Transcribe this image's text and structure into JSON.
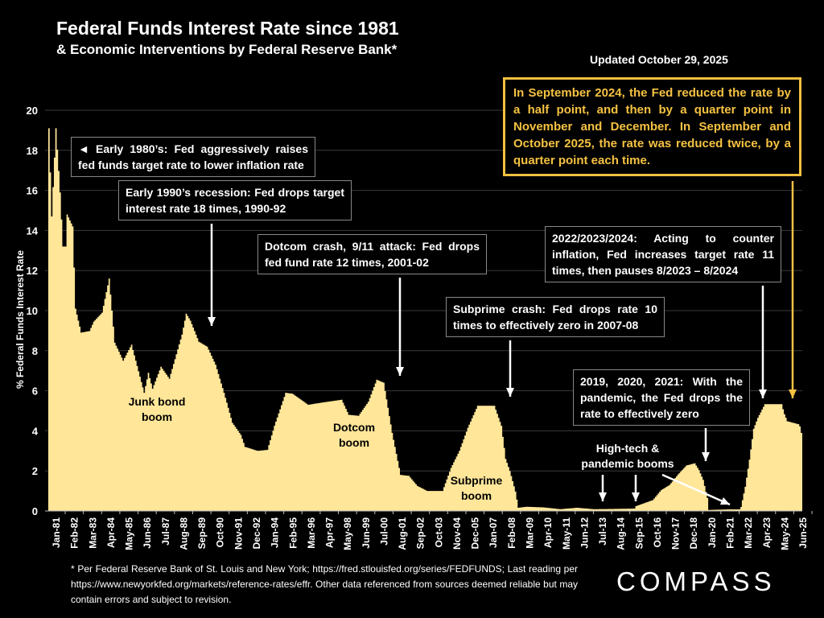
{
  "header": {
    "title": "Federal Funds Interest Rate since 1981",
    "subtitle": "& Economic Interventions by Federal Reserve Bank*",
    "updated": "Updated October 29, 2025"
  },
  "chart_data": {
    "type": "area",
    "title": "Federal Funds Interest Rate since 1981",
    "ylabel": "% Federal Funds Interest Rate",
    "xlabel": "",
    "ylim": [
      0,
      20
    ],
    "yticks": [
      "0",
      "2",
      "4",
      "6",
      "8",
      "10",
      "12",
      "14",
      "16",
      "18",
      "20"
    ],
    "xlim": [
      "1981-01",
      "2025-10"
    ],
    "grid": true,
    "fill_color": "#FFE699",
    "xtick_labels": [
      "Jan-81",
      "Feb-82",
      "Mar-83",
      "Apr-84",
      "May-85",
      "Jun-86",
      "Jul-87",
      "Aug-88",
      "Sep-89",
      "Oct-90",
      "Nov-91",
      "Dec-92",
      "Jan-94",
      "Feb-95",
      "Mar-96",
      "Apr-97",
      "May-98",
      "Jun-99",
      "Jul-00",
      "Aug-01",
      "Sep-02",
      "Oct-03",
      "Nov-04",
      "Dec-05",
      "Jan-07",
      "Feb-08",
      "Mar-09",
      "Apr-10",
      "May-11",
      "Jun-12",
      "Jul-13",
      "Aug-14",
      "Sep-15",
      "Oct-16",
      "Nov-17",
      "Dec-18",
      "Jan-20",
      "Feb-21",
      "Mar-22",
      "Apr-23",
      "May-24",
      "Jun-25"
    ],
    "points": [
      [
        "1981-01",
        19.1
      ],
      [
        "1981-03",
        14.7
      ],
      [
        "1981-06",
        19.1
      ],
      [
        "1981-09",
        15.9
      ],
      [
        "1981-11",
        13.2
      ],
      [
        "1982-01",
        13.2
      ],
      [
        "1982-02",
        14.8
      ],
      [
        "1982-06",
        14.2
      ],
      [
        "1982-08",
        10.1
      ],
      [
        "1982-12",
        8.9
      ],
      [
        "1983-06",
        8.98
      ],
      [
        "1983-09",
        9.45
      ],
      [
        "1984-03",
        9.9
      ],
      [
        "1984-08",
        11.6
      ],
      [
        "1984-12",
        8.4
      ],
      [
        "1985-06",
        7.5
      ],
      [
        "1985-12",
        8.3
      ],
      [
        "1986-03",
        7.5
      ],
      [
        "1986-09",
        5.9
      ],
      [
        "1986-12",
        6.9
      ],
      [
        "1987-03",
        6.1
      ],
      [
        "1987-09",
        7.2
      ],
      [
        "1988-03",
        6.6
      ],
      [
        "1988-12",
        8.8
      ],
      [
        "1989-03",
        9.85
      ],
      [
        "1989-06",
        9.5
      ],
      [
        "1989-12",
        8.45
      ],
      [
        "1990-06",
        8.2
      ],
      [
        "1990-12",
        7.3
      ],
      [
        "1991-06",
        5.9
      ],
      [
        "1991-12",
        4.4
      ],
      [
        "1992-06",
        3.8
      ],
      [
        "1992-09",
        3.2
      ],
      [
        "1993-06",
        3.0
      ],
      [
        "1994-01",
        3.05
      ],
      [
        "1994-06",
        4.25
      ],
      [
        "1995-02",
        5.9
      ],
      [
        "1995-07",
        5.85
      ],
      [
        "1996-01",
        5.55
      ],
      [
        "1996-06",
        5.3
      ],
      [
        "1997-03",
        5.4
      ],
      [
        "1998-06",
        5.55
      ],
      [
        "1998-11",
        4.8
      ],
      [
        "1999-06",
        4.75
      ],
      [
        "2000-01",
        5.45
      ],
      [
        "2000-07",
        6.55
      ],
      [
        "2000-12",
        6.4
      ],
      [
        "2001-06",
        3.9
      ],
      [
        "2001-12",
        1.8
      ],
      [
        "2002-06",
        1.75
      ],
      [
        "2002-12",
        1.25
      ],
      [
        "2003-07",
        1.0
      ],
      [
        "2004-06",
        1.0
      ],
      [
        "2004-12",
        2.15
      ],
      [
        "2005-06",
        3.0
      ],
      [
        "2005-12",
        4.15
      ],
      [
        "2006-07",
        5.25
      ],
      [
        "2007-07",
        5.25
      ],
      [
        "2007-12",
        4.25
      ],
      [
        "2008-03",
        2.6
      ],
      [
        "2008-06",
        2.0
      ],
      [
        "2008-10",
        0.97
      ],
      [
        "2008-12",
        0.16
      ],
      [
        "2009-06",
        0.21
      ],
      [
        "2010-06",
        0.18
      ],
      [
        "2011-06",
        0.09
      ],
      [
        "2012-06",
        0.16
      ],
      [
        "2013-06",
        0.09
      ],
      [
        "2014-06",
        0.1
      ],
      [
        "2015-11",
        0.12
      ],
      [
        "2015-12",
        0.24
      ],
      [
        "2016-12",
        0.54
      ],
      [
        "2017-06",
        1.04
      ],
      [
        "2017-12",
        1.3
      ],
      [
        "2018-06",
        1.82
      ],
      [
        "2018-12",
        2.27
      ],
      [
        "2019-06",
        2.38
      ],
      [
        "2019-09",
        2.04
      ],
      [
        "2019-12",
        1.55
      ],
      [
        "2020-03",
        0.65
      ],
      [
        "2020-04",
        0.05
      ],
      [
        "2021-06",
        0.08
      ],
      [
        "2022-02",
        0.08
      ],
      [
        "2022-03",
        0.2
      ],
      [
        "2022-06",
        1.21
      ],
      [
        "2022-09",
        2.56
      ],
      [
        "2022-12",
        4.1
      ],
      [
        "2023-03",
        4.65
      ],
      [
        "2023-08",
        5.33
      ],
      [
        "2024-08",
        5.33
      ],
      [
        "2024-10",
        4.83
      ],
      [
        "2024-12",
        4.48
      ],
      [
        "2025-08",
        4.33
      ],
      [
        "2025-09",
        4.22
      ],
      [
        "2025-10",
        3.9
      ]
    ],
    "annotations": {
      "early80s": "◄ Early 1980’s: Fed aggressively raises fed funds target rate to lower inflation rate",
      "early90s": "Early 1990’s recession: Fed drops target interest rate 18 times, 1990-92",
      "dotcom_crash": "Dotcom crash, 9/11 attack: Fed drops fed fund rate 12 times, 2001-02",
      "subprime_crash": "Subprime crash: Fed drops rate 10 times to effectively zero in 2007-08",
      "inflation": "2022/2023/2024: Acting to counter inflation, Fed increases target rate 11 times, then pauses 8/2023 – 8/2024",
      "pandemic": "2019, 2020, 2021: With the pandemic, the Fed drops the  rate to effectively zero",
      "latest": "In September 2024, the Fed reduced the rate by a half point, and then by a quarter point in November and December. In September and October 2025, the rate was reduced twice, by a quarter point each time.",
      "latest_color": "#F5C242",
      "junk_bond": "Junk bond boom",
      "dotcom_boom": "Dotcom boom",
      "subprime_boom": "Subprime boom",
      "hightech_boom": "High-tech & pandemic booms"
    }
  },
  "footer": {
    "note": "* Per Federal Reserve Bank of St. Louis and New York; https://fred.stlouisfed.org/series/FEDFUNDS; Last reading per https://www.newyorkfed.org/markets/reference-rates/effr. Other data referenced from sources deemed reliable but may contain errors and subject to revision.",
    "logo": "COMPASS"
  }
}
